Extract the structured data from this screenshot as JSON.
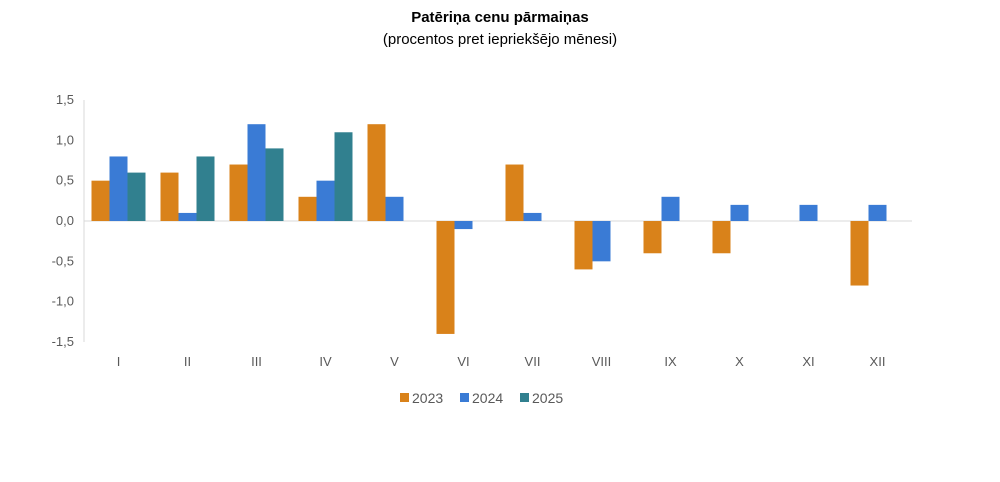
{
  "chart_data": {
    "type": "bar",
    "title": "Patēriņa cenu pārmaiņas",
    "subtitle": "(procentos pret iepriekšējo mēnesi)",
    "categories": [
      "I",
      "II",
      "III",
      "IV",
      "V",
      "VI",
      "VII",
      "VIII",
      "IX",
      "X",
      "XI",
      "XII"
    ],
    "series": [
      {
        "name": "2023",
        "color": "#d9821a",
        "values": [
          0.5,
          0.6,
          0.7,
          0.3,
          1.2,
          -1.4,
          0.7,
          -0.6,
          -0.4,
          -0.4,
          null,
          -0.8
        ]
      },
      {
        "name": "2024",
        "color": "#3a7bd5",
        "values": [
          0.8,
          0.1,
          1.2,
          0.5,
          0.3,
          -0.1,
          0.1,
          -0.5,
          0.3,
          0.2,
          0.2,
          0.2
        ]
      },
      {
        "name": "2025",
        "color": "#31808f",
        "values": [
          0.6,
          0.8,
          0.9,
          1.1,
          null,
          null,
          null,
          null,
          null,
          null,
          null,
          null
        ]
      }
    ],
    "y_ticks": [
      "1,5",
      "1,0",
      "0,5",
      "0,0",
      "-0,5",
      "-1,0",
      "-1,5"
    ],
    "ylim": [
      -1.5,
      1.5
    ],
    "grid": false,
    "legend_position": "bottom"
  }
}
